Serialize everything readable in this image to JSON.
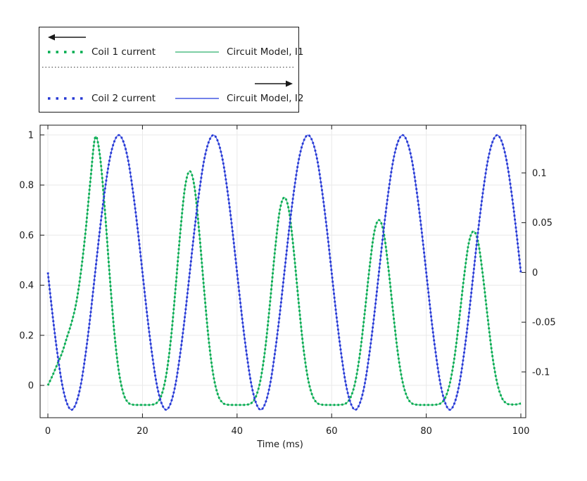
{
  "legend": {
    "groups": [
      {
        "axis": "left",
        "arrow_direction": "left",
        "items": [
          {
            "label": "Coil 1 current",
            "style": "dotted",
            "color": "#00ac4e"
          },
          {
            "label": "Circuit Model, I1",
            "style": "solid",
            "color": "#52bd86"
          }
        ]
      },
      {
        "axis": "right",
        "arrow_direction": "right",
        "items": [
          {
            "label": "Coil 2 current",
            "style": "dotted",
            "color": "#2638d4"
          },
          {
            "label": "Circuit Model, I2",
            "style": "solid",
            "color": "#4559e2"
          }
        ]
      }
    ]
  },
  "chart_data": {
    "type": "line",
    "xlabel": "Time (ms)",
    "grid": true,
    "grid_color": "#e9e9e9",
    "frame_color": "#1a1a1a",
    "x_axis": {
      "range": [
        -1.64,
        101.04
      ],
      "tick_values": [
        0,
        20,
        40,
        60,
        80,
        100
      ],
      "tick_labels": [
        "0",
        "20",
        "40",
        "60",
        "80",
        "100"
      ]
    },
    "y_left_axis": {
      "range": [
        -0.129,
        1.039
      ],
      "tick_values": [
        0,
        0.2,
        0.4,
        0.6,
        0.8,
        1
      ],
      "tick_labels": [
        "0",
        "0.2",
        "0.4",
        "0.6",
        "0.8",
        "1"
      ]
    },
    "y_right_axis": {
      "range": [
        -0.146,
        0.148
      ],
      "tick_values": [
        -0.1,
        -0.05,
        0,
        0.05,
        0.1
      ],
      "tick_labels": [
        "-0.1",
        "-0.05",
        "0",
        "0.05",
        "0.1"
      ]
    },
    "x": [
      0,
      1,
      2,
      3,
      4,
      5,
      6,
      7,
      8,
      9,
      10,
      11,
      12,
      13,
      14,
      15,
      16,
      17,
      18,
      19,
      20,
      21,
      22,
      23,
      24,
      25,
      26,
      27,
      28,
      29,
      30,
      31,
      32,
      33,
      34,
      35,
      36,
      37,
      38,
      39,
      40,
      41,
      42,
      43,
      44,
      45,
      46,
      47,
      48,
      49,
      50,
      51,
      52,
      53,
      54,
      55,
      56,
      57,
      58,
      59,
      60,
      61,
      62,
      63,
      64,
      65,
      66,
      67,
      68,
      69,
      70,
      71,
      72,
      73,
      74,
      75,
      76,
      77,
      78,
      79,
      80,
      81,
      82,
      83,
      84,
      85,
      86,
      87,
      88,
      89,
      90,
      91,
      92,
      93,
      94,
      95,
      96,
      97,
      98,
      99,
      100
    ],
    "series": [
      {
        "name": "Circuit Model, I1",
        "axis": "left",
        "style": "solid",
        "color": "#52bd86",
        "values": [
          0,
          0.04,
          0.085,
          0.13,
          0.19,
          0.25,
          0.33,
          0.455,
          0.62,
          0.82,
          0.99,
          0.918,
          0.712,
          0.456,
          0.221,
          0.056,
          -0.034,
          -0.069,
          -0.077,
          -0.078,
          -0.078,
          -0.078,
          -0.077,
          -0.07,
          -0.04,
          0.039,
          0.183,
          0.389,
          0.612,
          0.792,
          0.855,
          0.792,
          0.612,
          0.389,
          0.183,
          0.039,
          -0.04,
          -0.07,
          -0.077,
          -0.078,
          -0.078,
          -0.078,
          -0.077,
          -0.071,
          -0.044,
          0.026,
          0.154,
          0.336,
          0.535,
          0.695,
          0.75,
          0.695,
          0.535,
          0.336,
          0.154,
          0.026,
          -0.044,
          -0.071,
          -0.077,
          -0.078,
          -0.078,
          -0.078,
          -0.077,
          -0.072,
          -0.048,
          0.014,
          0.129,
          0.291,
          0.468,
          0.611,
          0.66,
          0.611,
          0.468,
          0.291,
          0.129,
          0.014,
          -0.048,
          -0.072,
          -0.077,
          -0.078,
          -0.078,
          -0.078,
          -0.077,
          -0.072,
          -0.05,
          0.009,
          0.116,
          0.269,
          0.435,
          0.569,
          0.615,
          0.569,
          0.435,
          0.269,
          0.116,
          0.009,
          -0.05,
          -0.072,
          -0.076,
          -0.076,
          -0.072
        ]
      },
      {
        "name": "Coil 1 current",
        "axis": "left",
        "style": "dotted",
        "color": "#00ac4e",
        "values": [
          0,
          0.04,
          0.085,
          0.13,
          0.19,
          0.25,
          0.33,
          0.455,
          0.62,
          0.82,
          0.99,
          0.918,
          0.712,
          0.456,
          0.221,
          0.056,
          -0.034,
          -0.069,
          -0.077,
          -0.078,
          -0.078,
          -0.078,
          -0.077,
          -0.07,
          -0.04,
          0.039,
          0.183,
          0.389,
          0.612,
          0.792,
          0.855,
          0.792,
          0.612,
          0.389,
          0.183,
          0.039,
          -0.04,
          -0.07,
          -0.077,
          -0.078,
          -0.078,
          -0.078,
          -0.077,
          -0.071,
          -0.044,
          0.026,
          0.154,
          0.336,
          0.535,
          0.695,
          0.75,
          0.695,
          0.535,
          0.336,
          0.154,
          0.026,
          -0.044,
          -0.071,
          -0.077,
          -0.078,
          -0.078,
          -0.078,
          -0.077,
          -0.072,
          -0.048,
          0.014,
          0.129,
          0.291,
          0.468,
          0.611,
          0.66,
          0.611,
          0.468,
          0.291,
          0.129,
          0.014,
          -0.048,
          -0.072,
          -0.077,
          -0.078,
          -0.078,
          -0.078,
          -0.077,
          -0.072,
          -0.05,
          0.009,
          0.116,
          0.269,
          0.435,
          0.569,
          0.615,
          0.569,
          0.435,
          0.269,
          0.116,
          0.009,
          -0.05,
          -0.072,
          -0.076,
          -0.076,
          -0.072
        ]
      },
      {
        "name": "Circuit Model, I2",
        "axis": "right",
        "style": "solid",
        "color": "#4559e2",
        "values": [
          0,
          -0.043,
          -0.081,
          -0.112,
          -0.131,
          -0.138,
          -0.131,
          -0.112,
          -0.081,
          -0.043,
          0,
          0.043,
          0.081,
          0.112,
          0.131,
          0.138,
          0.131,
          0.112,
          0.081,
          0.043,
          0,
          -0.043,
          -0.081,
          -0.112,
          -0.131,
          -0.138,
          -0.131,
          -0.112,
          -0.081,
          -0.043,
          0,
          0.043,
          0.081,
          0.112,
          0.131,
          0.138,
          0.131,
          0.112,
          0.081,
          0.043,
          0,
          -0.043,
          -0.081,
          -0.112,
          -0.131,
          -0.138,
          -0.131,
          -0.112,
          -0.081,
          -0.043,
          0,
          0.043,
          0.081,
          0.112,
          0.131,
          0.138,
          0.131,
          0.112,
          0.081,
          0.043,
          0,
          -0.043,
          -0.081,
          -0.112,
          -0.131,
          -0.138,
          -0.131,
          -0.112,
          -0.081,
          -0.043,
          0,
          0.043,
          0.081,
          0.112,
          0.131,
          0.138,
          0.131,
          0.112,
          0.081,
          0.043,
          0,
          -0.043,
          -0.081,
          -0.112,
          -0.131,
          -0.138,
          -0.131,
          -0.112,
          -0.081,
          -0.043,
          0,
          0.043,
          0.081,
          0.112,
          0.131,
          0.138,
          0.131,
          0.112,
          0.081,
          0.043,
          0
        ]
      },
      {
        "name": "Coil 2 current",
        "axis": "right",
        "style": "dotted",
        "color": "#2638d4",
        "values": [
          0,
          -0.043,
          -0.081,
          -0.112,
          -0.131,
          -0.138,
          -0.131,
          -0.112,
          -0.081,
          -0.043,
          0,
          0.043,
          0.081,
          0.112,
          0.131,
          0.138,
          0.131,
          0.112,
          0.081,
          0.043,
          0,
          -0.043,
          -0.081,
          -0.112,
          -0.131,
          -0.138,
          -0.131,
          -0.112,
          -0.081,
          -0.043,
          0,
          0.043,
          0.081,
          0.112,
          0.131,
          0.138,
          0.131,
          0.112,
          0.081,
          0.043,
          0,
          -0.043,
          -0.081,
          -0.112,
          -0.131,
          -0.138,
          -0.131,
          -0.112,
          -0.081,
          -0.043,
          0,
          0.043,
          0.081,
          0.112,
          0.131,
          0.138,
          0.131,
          0.112,
          0.081,
          0.043,
          0,
          -0.043,
          -0.081,
          -0.112,
          -0.131,
          -0.138,
          -0.131,
          -0.112,
          -0.081,
          -0.043,
          0,
          0.043,
          0.081,
          0.112,
          0.131,
          0.138,
          0.131,
          0.112,
          0.081,
          0.043,
          0,
          -0.043,
          -0.081,
          -0.112,
          -0.131,
          -0.138,
          -0.131,
          -0.112,
          -0.081,
          -0.043,
          0,
          0.043,
          0.081,
          0.112,
          0.131,
          0.138,
          0.131,
          0.112,
          0.081,
          0.043,
          0
        ]
      }
    ]
  }
}
